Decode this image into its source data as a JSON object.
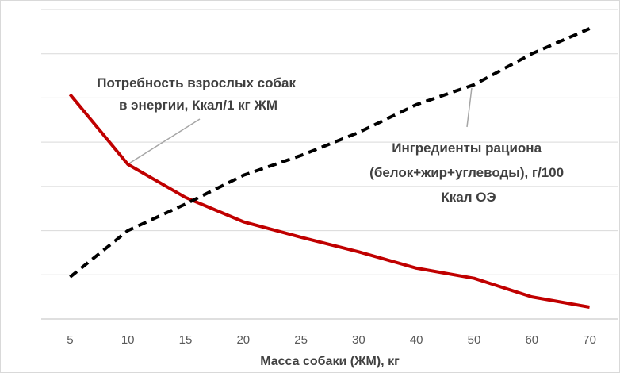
{
  "chart_data": {
    "type": "line",
    "title": "",
    "xlabel": "Масса собаки (ЖМ), кг",
    "ylabel": "",
    "categories": [
      "5",
      "10",
      "15",
      "20",
      "25",
      "30",
      "40",
      "50",
      "60",
      "70"
    ],
    "ylim": [
      0,
      7
    ],
    "grid": true,
    "y_tick_labels_shown": false,
    "series": [
      {
        "name": "Потребность взрослых собак в энергии, Ккал/1 кг ЖМ",
        "color": "#C00000",
        "style": "solid",
        "values": [
          5.08,
          3.5,
          2.75,
          2.2,
          1.85,
          1.52,
          1.15,
          0.92,
          0.5,
          0.27
        ]
      },
      {
        "name": "Ингредиенты рациона (белок+жир+углеводы), г/100 Ккал ОЭ",
        "color": "#000000",
        "style": "dashed",
        "values": [
          0.95,
          2.0,
          2.6,
          3.25,
          3.7,
          4.22,
          4.85,
          5.3,
          6.0,
          6.57
        ]
      }
    ],
    "annotations": [
      {
        "series": 0,
        "lines": [
          "Потребность взрослых собак",
          "в энергии, Ккал/1 кг ЖМ"
        ]
      },
      {
        "series": 1,
        "lines": [
          "Ингредиенты рациона",
          "(белок+жир+углеводы), г/100",
          "Ккал ОЭ"
        ]
      }
    ]
  }
}
